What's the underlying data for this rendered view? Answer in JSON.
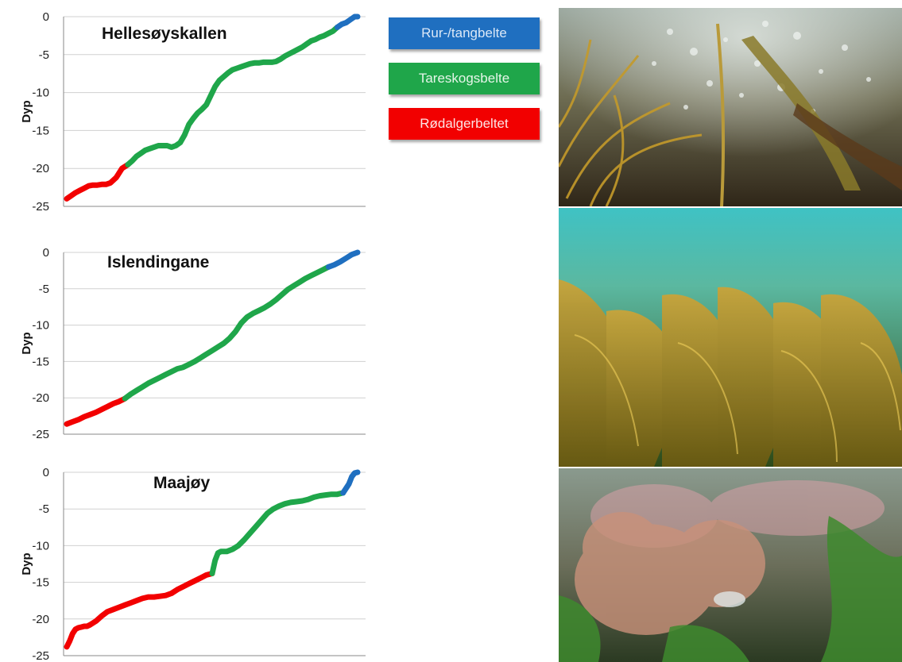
{
  "legend": {
    "items": [
      {
        "label": "Rur-/tangbelte",
        "color": "#1f6fc0",
        "text_color": "#dbe8f7"
      },
      {
        "label": "Tareskogsbelte",
        "color": "#1fa64a",
        "text_color": "#e6f6e9"
      },
      {
        "label": "Rødalgerbeltet",
        "color": "#f20000",
        "text_color": "#fde4e4"
      }
    ]
  },
  "colors": {
    "profile_line": "#1f5fbf",
    "grid": "#d0d0d0",
    "axis": "#888888"
  },
  "chart_data": [
    {
      "type": "line",
      "title": "Hellesøyskallen",
      "ylabel": "Dyp",
      "xlabel": "",
      "ylim": [
        -25,
        0
      ],
      "yticks": [
        0,
        -5,
        -10,
        -15,
        -20,
        -25
      ],
      "x": [
        0,
        1.5,
        3,
        4.5,
        6,
        7.5,
        9,
        10.5,
        12,
        13.5,
        15,
        17,
        19,
        21,
        22.5,
        24,
        25.5,
        27,
        28.5,
        30,
        31.5,
        33,
        34.5,
        36,
        37.5,
        39,
        40.5,
        42,
        43.5,
        45,
        46.5,
        48,
        49.5,
        51,
        52.5,
        54,
        55.5,
        57,
        58.5,
        60,
        61.5,
        63,
        64.5,
        66,
        67.5,
        69,
        70.5,
        72,
        73.5,
        75,
        76.5,
        78,
        79.5,
        81,
        82.5,
        84,
        85.5,
        87,
        88.5,
        90,
        91.5,
        93,
        94.5,
        96,
        97.5,
        99,
        100
      ],
      "y": [
        -24.0,
        -23.6,
        -23.2,
        -22.9,
        -22.6,
        -22.3,
        -22.2,
        -22.2,
        -22.1,
        -22.1,
        -21.9,
        -21.2,
        -20.0,
        -19.5,
        -19.0,
        -18.4,
        -18.0,
        -17.6,
        -17.4,
        -17.2,
        -17.0,
        -17.0,
        -17.0,
        -17.2,
        -17.0,
        -16.6,
        -15.6,
        -14.2,
        -13.4,
        -12.7,
        -12.2,
        -11.6,
        -10.4,
        -9.2,
        -8.4,
        -7.9,
        -7.4,
        -7.0,
        -6.8,
        -6.6,
        -6.4,
        -6.2,
        -6.1,
        -6.1,
        -6.0,
        -6.0,
        -6.0,
        -5.9,
        -5.6,
        -5.2,
        -4.9,
        -4.6,
        -4.3,
        -4.0,
        -3.6,
        -3.2,
        -3.0,
        -2.7,
        -2.5,
        -2.2,
        -1.9,
        -1.4,
        -1.0,
        -0.8,
        -0.4,
        0.0,
        0.0
      ],
      "series": [
        {
          "name": "Rødalgerbeltet",
          "color": "#f20000",
          "from": 0,
          "to": 21
        },
        {
          "name": "Tareskogsbelte",
          "color": "#1fa64a",
          "from": 21,
          "to": 93
        },
        {
          "name": "Rur-/tangbelte",
          "color": "#1f6fc0",
          "from": 93,
          "to": 100
        }
      ],
      "grid": true
    },
    {
      "type": "line",
      "title": "Islendingane",
      "ylabel": "Dyp",
      "xlabel": "",
      "ylim": [
        -25,
        0
      ],
      "yticks": [
        0,
        -5,
        -10,
        -15,
        -20,
        -25
      ],
      "x": [
        0,
        2,
        4,
        6,
        8,
        10,
        12,
        14,
        16,
        18,
        20,
        22,
        24,
        26,
        28,
        30,
        32,
        34,
        36,
        38,
        40,
        42,
        44,
        46,
        48,
        50,
        52,
        54,
        56,
        58,
        60,
        62,
        64,
        66,
        68,
        70,
        72,
        74,
        76,
        78,
        80,
        82,
        84,
        86,
        88,
        90,
        92,
        94,
        96,
        98,
        100
      ],
      "y": [
        -23.6,
        -23.3,
        -23.0,
        -22.6,
        -22.3,
        -22.0,
        -21.6,
        -21.2,
        -20.8,
        -20.5,
        -20.1,
        -19.5,
        -19.0,
        -18.5,
        -18.0,
        -17.6,
        -17.2,
        -16.8,
        -16.4,
        -16.0,
        -15.8,
        -15.4,
        -15.0,
        -14.5,
        -14.0,
        -13.5,
        -13.0,
        -12.5,
        -11.8,
        -10.9,
        -9.7,
        -8.9,
        -8.4,
        -8.0,
        -7.6,
        -7.1,
        -6.5,
        -5.8,
        -5.1,
        -4.6,
        -4.1,
        -3.6,
        -3.2,
        -2.8,
        -2.4,
        -2.0,
        -1.7,
        -1.3,
        -0.8,
        -0.3,
        0.0
      ],
      "series": [
        {
          "name": "Rødalgerbeltet",
          "color": "#f20000",
          "from": 0,
          "to": 20
        },
        {
          "name": "Tareskogsbelte",
          "color": "#1fa64a",
          "from": 20,
          "to": 90
        },
        {
          "name": "Rur-/tangbelte",
          "color": "#1f6fc0",
          "from": 90,
          "to": 100
        }
      ],
      "grid": true
    },
    {
      "type": "line",
      "title": "Maajøy",
      "ylabel": "Dyp",
      "xlabel": "",
      "ylim": [
        -25,
        0
      ],
      "yticks": [
        0,
        -5,
        -10,
        -15,
        -20,
        -25
      ],
      "x": [
        0,
        1,
        2,
        3,
        4,
        5,
        6,
        7,
        8,
        10,
        12,
        14,
        16,
        18,
        20,
        22,
        24,
        26,
        28,
        30,
        32,
        34,
        36,
        38,
        40,
        42,
        44,
        46,
        48,
        50,
        51,
        52,
        53,
        54,
        55,
        57,
        59,
        61,
        63,
        65,
        67,
        69,
        71,
        73,
        75,
        77,
        79,
        81,
        83,
        85,
        87,
        89,
        91,
        93,
        95,
        97,
        98,
        99,
        100
      ],
      "y": [
        -23.8,
        -23.0,
        -22.0,
        -21.4,
        -21.2,
        -21.1,
        -21.0,
        -21.0,
        -20.8,
        -20.3,
        -19.6,
        -19.0,
        -18.7,
        -18.4,
        -18.1,
        -17.8,
        -17.5,
        -17.2,
        -17.0,
        -17.0,
        -16.9,
        -16.8,
        -16.5,
        -16.0,
        -15.6,
        -15.2,
        -14.8,
        -14.4,
        -14.0,
        -13.8,
        -12.0,
        -11.0,
        -10.8,
        -10.8,
        -10.8,
        -10.5,
        -10.0,
        -9.2,
        -8.3,
        -7.4,
        -6.5,
        -5.6,
        -5.0,
        -4.6,
        -4.3,
        -4.1,
        -4.0,
        -3.9,
        -3.7,
        -3.4,
        -3.2,
        -3.1,
        -3.0,
        -3.0,
        -2.8,
        -1.6,
        -0.6,
        -0.1,
        0.0
      ],
      "series": [
        {
          "name": "Rødalgerbeltet",
          "color": "#f20000",
          "from": 0,
          "to": 50
        },
        {
          "name": "Tareskogsbelte",
          "color": "#1fa64a",
          "from": 50,
          "to": 95
        },
        {
          "name": "Rur-/tangbelte",
          "color": "#1f6fc0",
          "from": 95,
          "to": 100
        }
      ],
      "grid": true
    }
  ]
}
